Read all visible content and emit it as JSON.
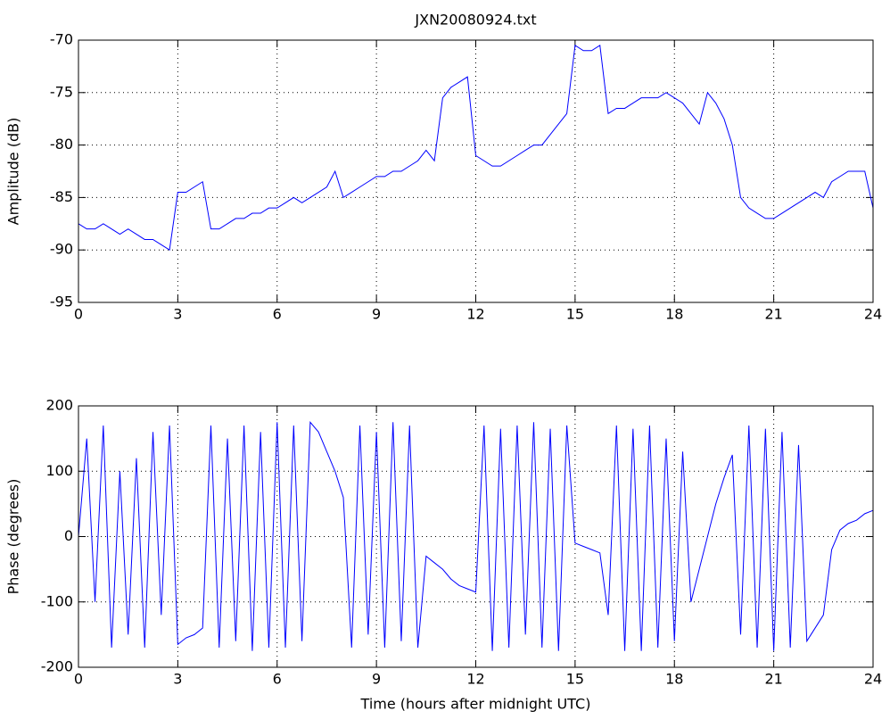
{
  "chart_data": [
    {
      "type": "line",
      "title": "JXN20080924.txt",
      "y_label": "Amplitude (dB)",
      "x": [
        0,
        0.25,
        0.5,
        0.75,
        1,
        1.25,
        1.5,
        1.75,
        2,
        2.25,
        2.5,
        2.75,
        3,
        3.25,
        3.5,
        3.75,
        4,
        4.25,
        4.5,
        4.75,
        5,
        5.25,
        5.5,
        5.75,
        6,
        6.25,
        6.5,
        6.75,
        7,
        7.25,
        7.5,
        7.75,
        8,
        8.25,
        8.5,
        8.75,
        9,
        9.25,
        9.5,
        9.75,
        10,
        10.25,
        10.5,
        10.75,
        11,
        11.25,
        11.5,
        11.75,
        12,
        12.25,
        12.5,
        12.75,
        13,
        13.25,
        13.5,
        13.75,
        14,
        14.25,
        14.5,
        14.75,
        15,
        15.25,
        15.5,
        15.75,
        16,
        16.25,
        16.5,
        16.75,
        17,
        17.25,
        17.5,
        17.75,
        18,
        18.25,
        18.5,
        18.75,
        19,
        19.25,
        19.5,
        19.75,
        20,
        20.25,
        20.5,
        20.75,
        21,
        21.25,
        21.5,
        21.75,
        22,
        22.25,
        22.5,
        22.75,
        23,
        23.25,
        23.5,
        23.75,
        24
      ],
      "series": [
        {
          "color": "#0000ff",
          "values": [
            -87.5,
            -88,
            -88,
            -87.5,
            -88,
            -88.5,
            -88,
            -88.5,
            -89,
            -89,
            -89.5,
            -90,
            -84.5,
            -84.5,
            -84,
            -83.5,
            -88,
            -88,
            -87.5,
            -87,
            -87,
            -86.5,
            -86.5,
            -86,
            -86,
            -85.5,
            -85,
            -85.5,
            -85,
            -84.5,
            -84,
            -82.5,
            -85,
            -84.5,
            -84,
            -83.5,
            -83,
            -83,
            -82.5,
            -82.5,
            -82,
            -81.5,
            -80.5,
            -81.5,
            -75.5,
            -74.5,
            -74,
            -73.5,
            -81,
            -81.5,
            -82,
            -82,
            -81.5,
            -81,
            -80.5,
            -80,
            -80,
            -79,
            -78,
            -77,
            -70.5,
            -71,
            -71,
            -70.5,
            -77,
            -76.5,
            -76.5,
            -76,
            -75.5,
            -75.5,
            -75.5,
            -75,
            -75.5,
            -76,
            -77,
            -78,
            -75,
            -76,
            -77.5,
            -80,
            -85,
            -86,
            -86.5,
            -87,
            -87,
            -86.5,
            -86,
            -85.5,
            -85,
            -84.5,
            -85,
            -83.5,
            -83,
            -82.5,
            -82.5,
            -82.5,
            -86
          ]
        }
      ],
      "xlim": [
        0,
        24
      ],
      "xticks": [
        0,
        3,
        6,
        9,
        12,
        15,
        18,
        21,
        24
      ],
      "ylim": [
        -95,
        -70
      ],
      "yticks": [
        -95,
        -90,
        -85,
        -80,
        -75,
        -70
      ],
      "grid": true
    },
    {
      "type": "line",
      "x_label": "Time (hours after midnight UTC)",
      "y_label": "Phase (degrees)",
      "x": [
        0,
        0.25,
        0.5,
        0.75,
        1,
        1.25,
        1.5,
        1.75,
        2,
        2.25,
        2.5,
        2.75,
        3,
        3.25,
        3.5,
        3.75,
        4,
        4.25,
        4.5,
        4.75,
        5,
        5.25,
        5.5,
        5.75,
        6,
        6.25,
        6.5,
        6.75,
        7,
        7.25,
        7.5,
        7.75,
        8,
        8.25,
        8.5,
        8.75,
        9,
        9.25,
        9.5,
        9.75,
        10,
        10.25,
        10.5,
        10.75,
        11,
        11.25,
        11.5,
        11.75,
        12,
        12.25,
        12.5,
        12.75,
        13,
        13.25,
        13.5,
        13.75,
        14,
        14.25,
        14.5,
        14.75,
        15,
        15.25,
        15.5,
        15.75,
        16,
        16.25,
        16.5,
        16.75,
        17,
        17.25,
        17.5,
        17.75,
        18,
        18.25,
        18.5,
        18.75,
        19,
        19.25,
        19.5,
        19.75,
        20,
        20.25,
        20.5,
        20.75,
        21,
        21.25,
        21.5,
        21.75,
        22,
        22.25,
        22.5,
        22.75,
        23,
        23.25,
        23.5,
        23.75,
        24
      ],
      "series": [
        {
          "color": "#0000ff",
          "values": [
            0,
            150,
            -100,
            170,
            -170,
            100,
            -150,
            120,
            -170,
            160,
            -120,
            170,
            -165,
            -155,
            -150,
            -140,
            170,
            -170,
            150,
            -160,
            170,
            -175,
            160,
            -170,
            175,
            -170,
            170,
            -160,
            175,
            160,
            130,
            100,
            60,
            -170,
            170,
            -150,
            160,
            -170,
            175,
            -160,
            170,
            -170,
            -30,
            -40,
            -50,
            -65,
            -75,
            -80,
            -85,
            170,
            -175,
            165,
            -170,
            170,
            -150,
            175,
            -170,
            165,
            -175,
            170,
            -10,
            -15,
            -20,
            -25,
            -120,
            170,
            -175,
            165,
            -175,
            170,
            -170,
            150,
            -160,
            130,
            -100,
            -50,
            0,
            50,
            90,
            125,
            -150,
            170,
            -170,
            165,
            -175,
            160,
            -170,
            140,
            -160,
            -140,
            -120,
            -20,
            10,
            20,
            25,
            35,
            40
          ]
        }
      ],
      "xlim": [
        0,
        24
      ],
      "xticks": [
        0,
        3,
        6,
        9,
        12,
        15,
        18,
        21,
        24
      ],
      "ylim": [
        -200,
        200
      ],
      "yticks": [
        -200,
        -100,
        0,
        100,
        200
      ],
      "grid": true
    }
  ]
}
